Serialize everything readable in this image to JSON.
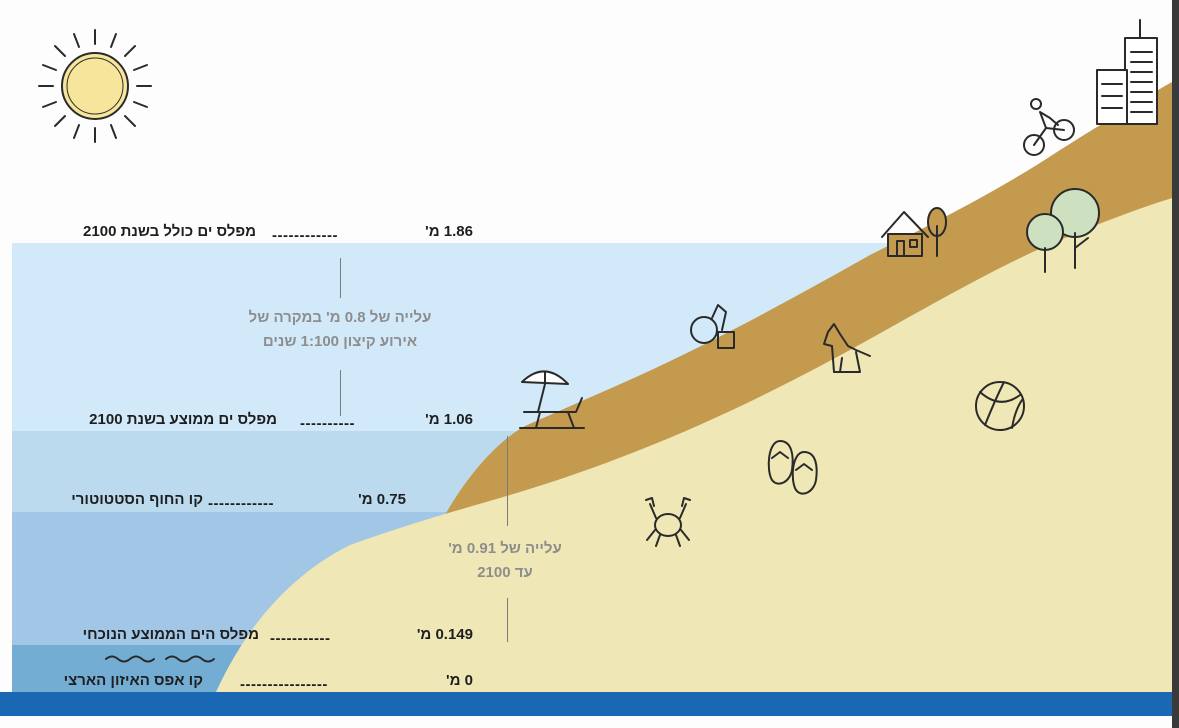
{
  "levels": [
    {
      "id": "level-1",
      "label": "מפלס ים כולל בשנת 2100",
      "value": "1.86 מ'"
    },
    {
      "id": "level-2",
      "label": "מפלס ים ממוצע בשנת 2100",
      "value": "1.06 מ'"
    },
    {
      "id": "level-3",
      "label": "קו החוף הסטטוטורי",
      "value": "0.75 מ'"
    },
    {
      "id": "level-4",
      "label": "מפלס הים הממוצע הנוכחי",
      "value": "0.149 מ'"
    },
    {
      "id": "level-5",
      "label": "קו אפס האיזון הארצי",
      "value": "0 מ'"
    }
  ],
  "notes": {
    "extreme_rise": {
      "line1": "עלייה של 0.8 מ' במקרה של",
      "line2": "אירוע קיצון 1:100 שנים"
    },
    "mean_rise": {
      "line1": "עלייה של 0.91 מ'",
      "line2": "עד 2100"
    }
  },
  "colors": {
    "sky_water": "#d2e9fa",
    "water_mid": "#bcdaee",
    "water_deep": "#a2c6e6",
    "water_bottom": "#73add3",
    "ground_base": "#1a67b3",
    "sand": "#efe7b5",
    "soil": "#c49a4e",
    "sun": "#f6e59a"
  },
  "icons": [
    "sun-icon",
    "buildings-icon",
    "cyclist-icon",
    "house-icon",
    "trees-icon",
    "sandcastle-bucket-icon",
    "dog-icon",
    "beach-umbrella-icon",
    "beach-ball-icon",
    "flip-flops-icon",
    "crab-icon",
    "waves-icon"
  ]
}
